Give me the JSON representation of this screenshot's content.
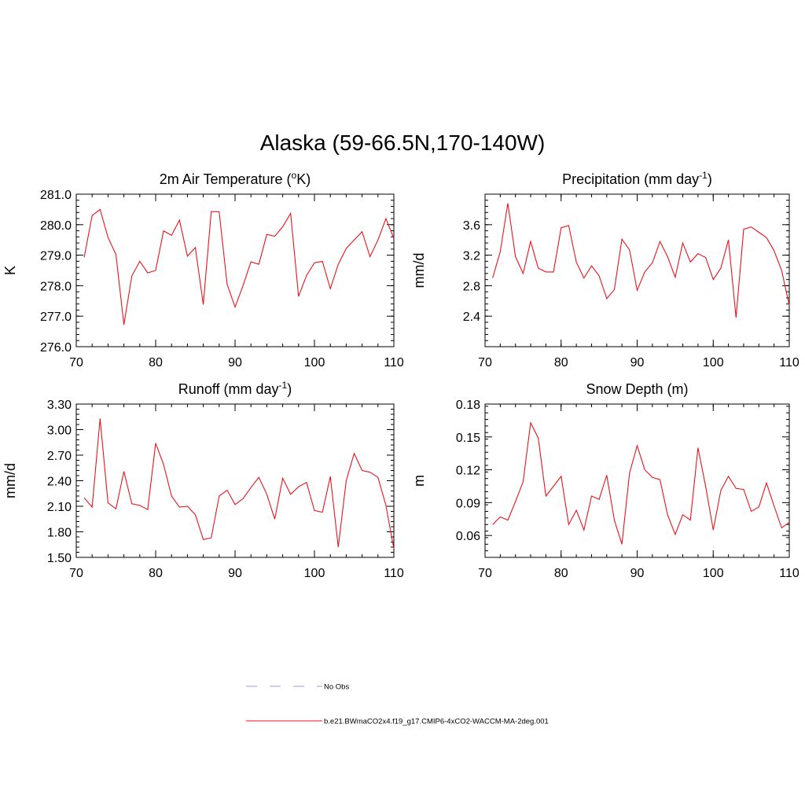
{
  "title": "Alaska (59-66.5N,170-140W)",
  "colors": {
    "model_line": "#e8141c",
    "obs_line": "#9a9aee",
    "axis": "#000000"
  },
  "legend": {
    "obs_label": "No Obs",
    "model_label": "b.e21.BWmaCO2x4.f19_g17.CMIP6-4xCO2-WACCM-MA-2deg.001"
  },
  "chart_data": [
    {
      "type": "line",
      "title": "2m Air Temperature (",
      "title_sup": "o",
      "title_after": "K)",
      "ylabel": "K",
      "xlim": [
        70,
        110
      ],
      "ylim": [
        276.0,
        281.0
      ],
      "xticks": [
        70,
        80,
        90,
        100,
        110
      ],
      "yticks": [
        276.0,
        277.0,
        278.0,
        279.0,
        280.0,
        281.0
      ],
      "ytick_labels": [
        "276.0",
        "277.0",
        "278.0",
        "279.0",
        "280.0",
        "281.0"
      ],
      "x": [
        71,
        72,
        73,
        74,
        75,
        76,
        77,
        78,
        79,
        80,
        81,
        82,
        83,
        84,
        85,
        86,
        87,
        88,
        89,
        90,
        91,
        92,
        93,
        94,
        95,
        96,
        97,
        98,
        99,
        100,
        101,
        102,
        103,
        104,
        105,
        106,
        107,
        108,
        109,
        110
      ],
      "values": [
        278.93,
        280.3,
        280.5,
        279.58,
        279.02,
        276.72,
        278.32,
        278.8,
        278.42,
        278.5,
        279.8,
        279.65,
        280.15,
        278.97,
        279.25,
        277.38,
        280.43,
        280.42,
        278.05,
        277.3,
        278.0,
        278.78,
        278.7,
        279.68,
        279.62,
        279.93,
        280.37,
        277.65,
        278.33,
        278.75,
        278.8,
        277.9,
        278.7,
        279.22,
        279.5,
        279.77,
        278.95,
        279.5,
        280.2,
        279.55
      ]
    },
    {
      "type": "line",
      "title": "Precipitation (mm day",
      "title_sup": "-1",
      "title_after": ")",
      "ylabel": "mm/d",
      "xlim": [
        70,
        110
      ],
      "ylim": [
        2.0,
        4.0
      ],
      "xticks": [
        70,
        80,
        90,
        100,
        110
      ],
      "yticks": [
        2.4,
        2.8,
        3.2,
        3.6
      ],
      "ytick_labels": [
        "2.4",
        "2.8",
        "3.2",
        "3.6"
      ],
      "x": [
        71,
        72,
        73,
        74,
        75,
        76,
        77,
        78,
        79,
        80,
        81,
        82,
        83,
        84,
        85,
        86,
        87,
        88,
        89,
        90,
        91,
        92,
        93,
        94,
        95,
        96,
        97,
        98,
        99,
        100,
        101,
        102,
        103,
        104,
        105,
        106,
        107,
        108,
        109,
        110
      ],
      "values": [
        2.9,
        3.25,
        3.88,
        3.18,
        2.96,
        3.38,
        3.03,
        2.98,
        2.98,
        3.56,
        3.59,
        3.11,
        2.9,
        3.06,
        2.93,
        2.63,
        2.75,
        3.41,
        3.27,
        2.74,
        2.98,
        3.1,
        3.38,
        3.18,
        2.91,
        3.36,
        3.11,
        3.22,
        3.17,
        2.88,
        3.03,
        3.4,
        2.38,
        3.54,
        3.57,
        3.5,
        3.43,
        3.26,
        3.0,
        2.54
      ]
    },
    {
      "type": "line",
      "title": "Runoff (mm day",
      "title_sup": "-1",
      "title_after": ")",
      "ylabel": "mm/d",
      "xlim": [
        70,
        110
      ],
      "ylim": [
        1.5,
        3.3
      ],
      "xticks": [
        70,
        80,
        90,
        100,
        110
      ],
      "yticks": [
        1.5,
        1.8,
        2.1,
        2.4,
        2.7,
        3.0,
        3.3
      ],
      "ytick_labels": [
        "1.50",
        "1.80",
        "2.10",
        "2.40",
        "2.70",
        "3.00",
        "3.30"
      ],
      "x": [
        71,
        72,
        73,
        74,
        75,
        76,
        77,
        78,
        79,
        80,
        81,
        82,
        83,
        84,
        85,
        86,
        87,
        88,
        89,
        90,
        91,
        92,
        93,
        94,
        95,
        96,
        97,
        98,
        99,
        100,
        101,
        102,
        103,
        104,
        105,
        106,
        107,
        108,
        109,
        110
      ],
      "values": [
        2.2,
        2.09,
        3.13,
        2.14,
        2.07,
        2.51,
        2.13,
        2.11,
        2.06,
        2.84,
        2.59,
        2.22,
        2.09,
        2.1,
        2.0,
        1.71,
        1.73,
        2.22,
        2.29,
        2.12,
        2.19,
        2.32,
        2.44,
        2.24,
        1.95,
        2.43,
        2.24,
        2.33,
        2.38,
        2.05,
        2.03,
        2.45,
        1.62,
        2.4,
        2.72,
        2.52,
        2.5,
        2.44,
        2.11,
        1.6
      ]
    },
    {
      "type": "line",
      "title": "Snow Depth (m)",
      "title_sup": "",
      "title_after": "",
      "ylabel": "m",
      "xlim": [
        70,
        110
      ],
      "ylim": [
        0.04,
        0.18
      ],
      "xticks": [
        70,
        80,
        90,
        100,
        110
      ],
      "yticks": [
        0.06,
        0.09,
        0.12,
        0.15,
        0.18
      ],
      "ytick_labels": [
        "0.06",
        "0.09",
        "0.12",
        "0.15",
        "0.18"
      ],
      "x": [
        71,
        72,
        73,
        74,
        75,
        76,
        77,
        78,
        79,
        80,
        81,
        82,
        83,
        84,
        85,
        86,
        87,
        88,
        89,
        90,
        91,
        92,
        93,
        94,
        95,
        96,
        97,
        98,
        99,
        100,
        101,
        102,
        103,
        104,
        105,
        106,
        107,
        108,
        109,
        110
      ],
      "values": [
        0.07,
        0.077,
        0.074,
        0.091,
        0.109,
        0.163,
        0.149,
        0.096,
        0.105,
        0.114,
        0.07,
        0.083,
        0.065,
        0.096,
        0.093,
        0.115,
        0.074,
        0.052,
        0.117,
        0.142,
        0.12,
        0.113,
        0.111,
        0.079,
        0.061,
        0.079,
        0.074,
        0.14,
        0.105,
        0.065,
        0.101,
        0.114,
        0.103,
        0.102,
        0.082,
        0.086,
        0.108,
        0.087,
        0.067,
        0.072
      ]
    }
  ]
}
